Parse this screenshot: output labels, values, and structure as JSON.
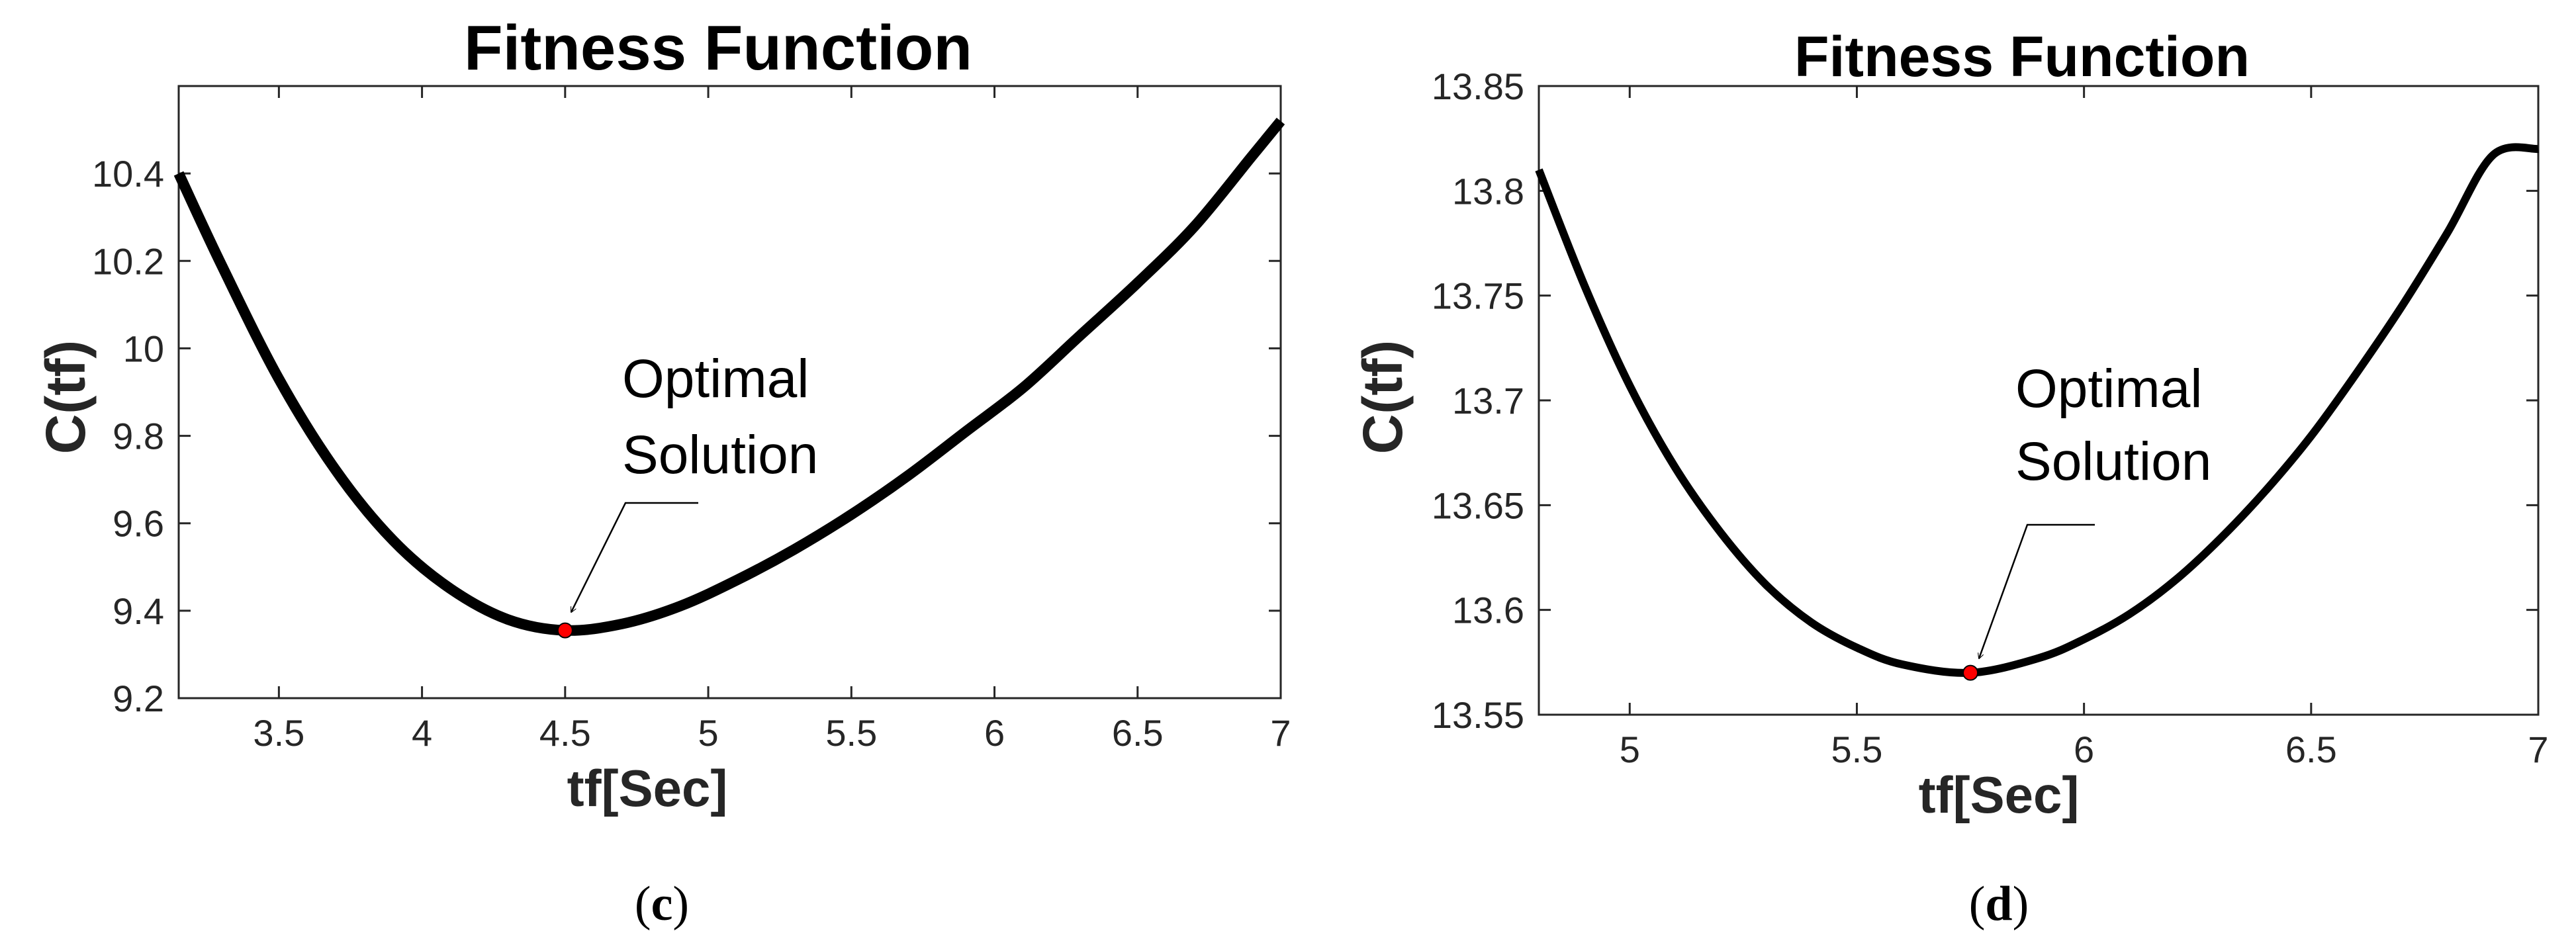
{
  "chart_data": [
    {
      "type": "line",
      "panel": "c",
      "title": "Fitness Function",
      "xlabel": "tf[Sec]",
      "ylabel": "C(tf)",
      "xlim": [
        3.15,
        7.0
      ],
      "ylim": [
        9.2,
        10.6
      ],
      "xticks": [
        3.5,
        4,
        4.5,
        5,
        5.5,
        6,
        6.5,
        7
      ],
      "xtick_labels": [
        "3.5",
        "4",
        "4.5",
        "5",
        "5.5",
        "6",
        "6.5",
        "7"
      ],
      "yticks": [
        9.2,
        9.4,
        9.6,
        9.8,
        10.0,
        10.2,
        10.4
      ],
      "ytick_labels": [
        "9.2",
        "9.4",
        "9.6",
        "9.8",
        "10",
        "10.2",
        "10.4"
      ],
      "grid": false,
      "series": [
        {
          "color": "#000000",
          "x": [
            3.15,
            3.3,
            3.5,
            3.7,
            3.9,
            4.1,
            4.3,
            4.5,
            4.7,
            4.9,
            5.1,
            5.3,
            5.5,
            5.7,
            5.9,
            6.1,
            6.3,
            6.5,
            6.7,
            6.9,
            7.0
          ],
          "y": [
            10.4,
            10.19,
            9.93,
            9.72,
            9.56,
            9.45,
            9.38,
            9.355,
            9.37,
            9.41,
            9.47,
            9.54,
            9.62,
            9.71,
            9.81,
            9.91,
            10.03,
            10.15,
            10.28,
            10.44,
            10.52
          ]
        }
      ],
      "optimal_point": {
        "x": 4.5,
        "y": 9.355,
        "color": "#ff0000"
      },
      "annotation": {
        "lines": [
          "Optimal",
          "Solution"
        ]
      }
    },
    {
      "type": "line",
      "panel": "d",
      "title": "Fitness Function",
      "xlabel": "tf[Sec]",
      "ylabel": "C(tf)",
      "xlim": [
        4.8,
        7.0
      ],
      "ylim": [
        13.55,
        13.85
      ],
      "xticks": [
        5,
        5.5,
        6,
        6.5,
        7
      ],
      "xtick_labels": [
        "5",
        "5.5",
        "6",
        "6.5",
        "7"
      ],
      "yticks": [
        13.55,
        13.6,
        13.65,
        13.7,
        13.75,
        13.8,
        13.85
      ],
      "ytick_labels": [
        "13.55",
        "13.6",
        "13.65",
        "13.7",
        "13.75",
        "13.8",
        "13.85"
      ],
      "grid": false,
      "series": [
        {
          "color": "#000000",
          "x": [
            4.8,
            4.9,
            5.0,
            5.1,
            5.2,
            5.3,
            5.4,
            5.5,
            5.6,
            5.75,
            5.9,
            6.0,
            6.1,
            6.2,
            6.3,
            6.4,
            6.5,
            6.6,
            6.7,
            6.8,
            6.9,
            7.0
          ],
          "y": [
            13.81,
            13.755,
            13.707,
            13.668,
            13.637,
            13.612,
            13.594,
            13.582,
            13.574,
            13.57,
            13.577,
            13.586,
            13.598,
            13.614,
            13.634,
            13.657,
            13.683,
            13.713,
            13.745,
            13.78,
            13.817,
            13.82
          ]
        }
      ],
      "optimal_point": {
        "x": 5.75,
        "y": 13.57,
        "color": "#ff0000"
      },
      "annotation": {
        "lines": [
          "Optimal",
          "Solution"
        ]
      }
    }
  ],
  "panel_labels": {
    "c": {
      "open": "(",
      "letter": "c",
      "close": ")"
    },
    "d": {
      "open": "(",
      "letter": "d",
      "close": ")"
    }
  }
}
